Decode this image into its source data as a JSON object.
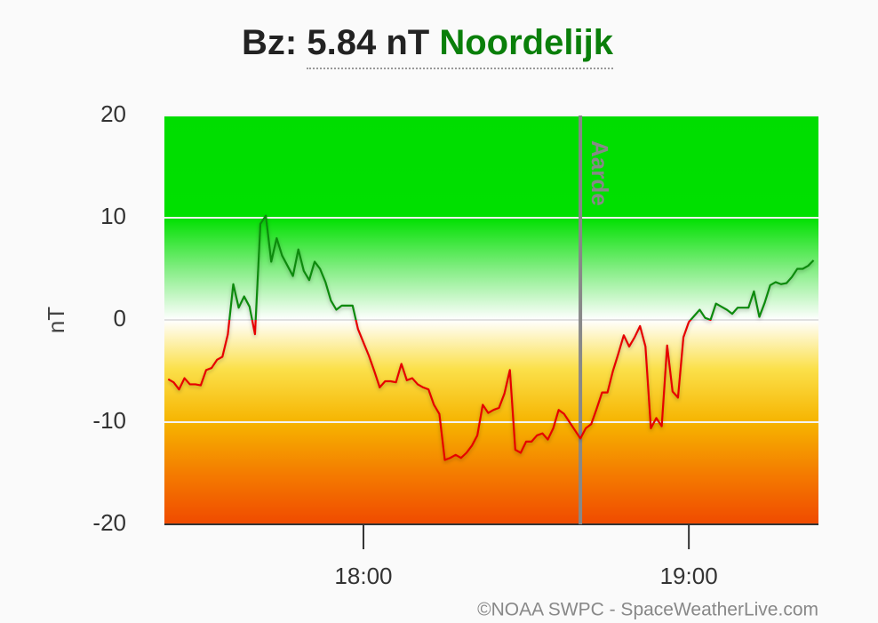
{
  "chart_data": {
    "type": "line",
    "title_prefix": "Bz:",
    "title_value": "5.84 nT",
    "title_status": "Noordelijk",
    "y_label": "nT",
    "ylim": [
      -20,
      20
    ],
    "yticks": [
      -20,
      -10,
      0,
      10,
      20
    ],
    "xlim": [
      1043.3,
      1163.9
    ],
    "xticks": [
      {
        "value": 1080,
        "label": "18:00"
      },
      {
        "value": 1140,
        "label": "19:00"
      }
    ],
    "grid": true,
    "annotation": {
      "text": "Aarde",
      "x": 1120
    },
    "color_positive": "#0a8a0a",
    "color_negative": "#e60000",
    "x": [
      1044,
      1045,
      1046,
      1047,
      1048,
      1049,
      1050,
      1051,
      1052,
      1053,
      1054,
      1055,
      1056,
      1057,
      1058,
      1059,
      1060,
      1061,
      1062,
      1063,
      1064,
      1065,
      1066,
      1067,
      1068,
      1069,
      1070,
      1071,
      1072,
      1073,
      1074,
      1075,
      1076,
      1077,
      1078,
      1079,
      1080,
      1081,
      1082,
      1083,
      1084,
      1085,
      1086,
      1087,
      1088,
      1089,
      1090,
      1091,
      1092,
      1093,
      1094,
      1095,
      1096,
      1097,
      1098,
      1099,
      1100,
      1101,
      1102,
      1103,
      1104,
      1105,
      1106,
      1107,
      1108,
      1109,
      1110,
      1111,
      1112,
      1113,
      1114,
      1115,
      1116,
      1117,
      1118,
      1119,
      1120,
      1121,
      1122,
      1123,
      1124,
      1125,
      1126,
      1127,
      1128,
      1129,
      1130,
      1131,
      1132,
      1133,
      1134,
      1135,
      1136,
      1137,
      1138,
      1139,
      1140,
      1141,
      1142,
      1143,
      1144,
      1145,
      1146,
      1147,
      1148,
      1149,
      1150,
      1151,
      1152,
      1153,
      1154,
      1155,
      1156,
      1157,
      1158,
      1159,
      1160,
      1161,
      1162,
      1163
    ],
    "values": [
      -5.8,
      -6.1,
      -6.8,
      -5.7,
      -6.3,
      -6.3,
      -6.4,
      -4.9,
      -4.7,
      -3.9,
      -3.6,
      -1.4,
      3.5,
      1.2,
      2.3,
      1.3,
      -1.4,
      9.4,
      10.2,
      5.7,
      8.0,
      6.3,
      5.3,
      4.3,
      6.9,
      4.8,
      3.9,
      5.7,
      5.0,
      3.7,
      1.9,
      1.0,
      1.4,
      1.4,
      1.4,
      -0.9,
      -2.2,
      -3.5,
      -5.0,
      -6.6,
      -6.0,
      -6.0,
      -6.1,
      -4.3,
      -5.9,
      -5.7,
      -6.3,
      -6.6,
      -6.8,
      -8.3,
      -9.2,
      -13.7,
      -13.5,
      -13.2,
      -13.5,
      -13.0,
      -12.3,
      -11.3,
      -8.3,
      -9.1,
      -8.8,
      -8.6,
      -7.2,
      -4.9,
      -12.7,
      -13.0,
      -11.9,
      -11.9,
      -11.3,
      -11.1,
      -11.7,
      -10.6,
      -8.8,
      -9.2,
      -10.0,
      -10.8,
      -11.6,
      -10.6,
      -10.2,
      -8.7,
      -7.1,
      -7.1,
      -5.0,
      -3.3,
      -1.5,
      -2.6,
      -1.7,
      -0.6,
      -2.6,
      -10.6,
      -9.6,
      -10.4,
      -2.5,
      -7.0,
      -7.6,
      -1.7,
      -0.2,
      0.4,
      1.0,
      0.2,
      0.0,
      1.6,
      1.3,
      1.0,
      0.6,
      1.2,
      1.2,
      1.2,
      2.8,
      0.3,
      1.7,
      3.4,
      3.7,
      3.5,
      3.6,
      4.2,
      5.0,
      5.0,
      5.3,
      5.84
    ],
    "credit": "©NOAA SWPC - SpaceWeatherLive.com"
  }
}
